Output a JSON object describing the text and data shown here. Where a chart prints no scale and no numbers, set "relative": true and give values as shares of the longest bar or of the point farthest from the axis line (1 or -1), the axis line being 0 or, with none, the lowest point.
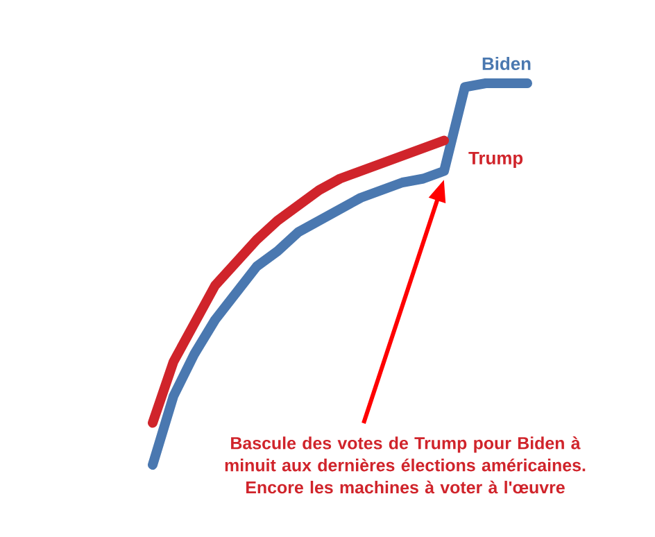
{
  "chart_data": {
    "type": "line",
    "relative": true,
    "marker": "none",
    "line_style": "solid",
    "categories": [
      null,
      null,
      null,
      null,
      null,
      null,
      null,
      null,
      null,
      null,
      null,
      null,
      null,
      null,
      null,
      null,
      null,
      null,
      null
    ],
    "series": [
      {
        "name": "Biden",
        "color": "#4a78b0",
        "values": [
          0,
          0.18,
          0.29,
          0.38,
          0.45,
          0.52,
          0.56,
          0.61,
          0.64,
          0.67,
          0.7,
          0.72,
          0.74,
          0.75,
          0.77,
          0.99,
          1.0,
          1.0,
          1.0
        ]
      },
      {
        "name": "Trump",
        "color": "#d0242b",
        "values": [
          0.11,
          0.27,
          0.37,
          0.47,
          0.53,
          0.59,
          0.64,
          0.68,
          0.72,
          0.75,
          0.77,
          0.79,
          0.81,
          0.83,
          0.85,
          null,
          null,
          null,
          null
        ]
      }
    ],
    "annotations": [
      "Bascule des votes de Trump pour Biden à minuit aux dernières élections américaines.",
      "Encore les machines à voter à l'œuvre"
    ]
  }
}
